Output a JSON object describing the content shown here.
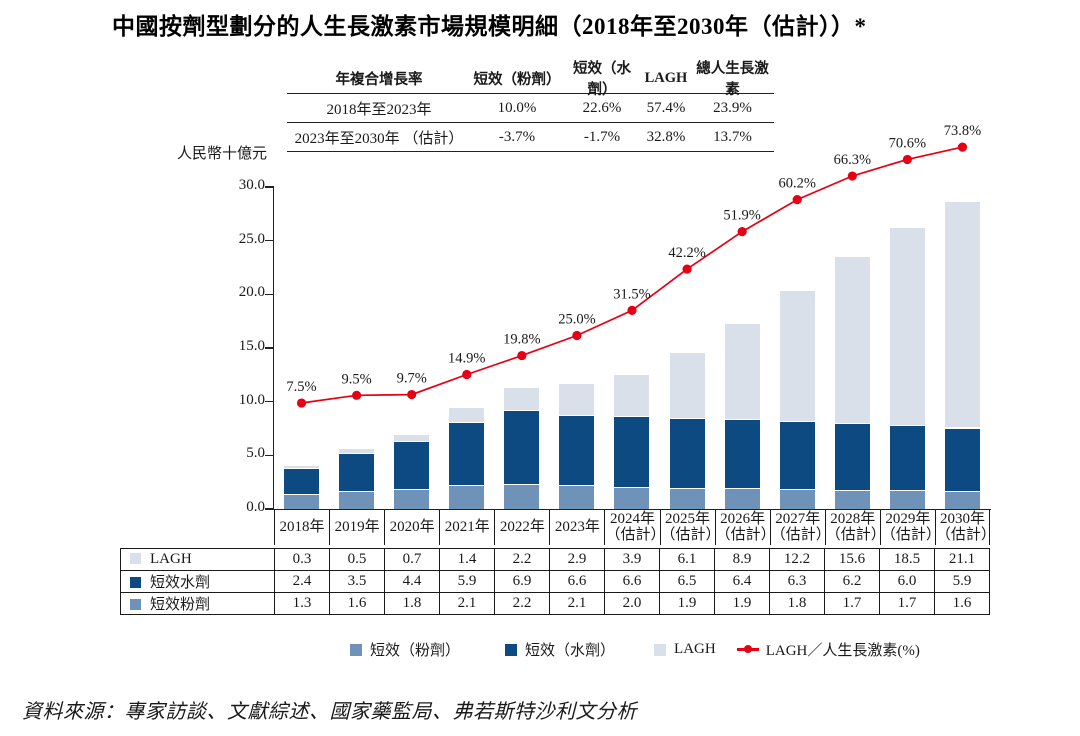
{
  "title": "中國按劑型劃分的人生長激素市場規模明細（2018年至2030年（估計））*",
  "cagr_table": {
    "header": [
      "年複合增長率",
      "短效（粉劑）",
      "短效（水劑）",
      "LAGH",
      "總人生長激素"
    ],
    "rows": [
      {
        "label": "2018年至2023年",
        "values": [
          "10.0%",
          "22.6%",
          "57.4%",
          "23.9%"
        ]
      },
      {
        "label": "2023年至2030年 （估計）",
        "values": [
          "-3.7%",
          "-1.7%",
          "32.8%",
          "13.7%"
        ]
      }
    ]
  },
  "chart_data": {
    "type": "stacked-bar+line",
    "title": "中國按劑型劃分的人生長激素市場規模明細（2018年至2030年（估計））*",
    "ylabel": "人民幣十億元",
    "ylim": [
      0,
      30
    ],
    "yticks": [
      "0.0",
      "5.0",
      "10.0",
      "15.0",
      "20.0",
      "25.0",
      "30.0"
    ],
    "grid": false,
    "legend_position": "bottom",
    "categories": [
      "2018年",
      "2019年",
      "2020年",
      "2021年",
      "2022年",
      "2023年",
      "2024年\n（估計）",
      "2025年\n（估計）",
      "2026年\n（估計）",
      "2027年\n（估計）",
      "2028年\n（估計）",
      "2029年\n（估計）",
      "2030年\n（估計）"
    ],
    "bar_series": [
      {
        "name": "短效粉劑",
        "legend_label": "短效（粉劑）",
        "color": "#6E92B8",
        "values": [
          1.3,
          1.6,
          1.8,
          2.1,
          2.2,
          2.1,
          2.0,
          1.9,
          1.9,
          1.8,
          1.7,
          1.7,
          1.6
        ]
      },
      {
        "name": "短效水劑",
        "legend_label": "短效（水劑）",
        "color": "#0D4A82",
        "values": [
          2.4,
          3.5,
          4.4,
          5.9,
          6.9,
          6.6,
          6.6,
          6.5,
          6.4,
          6.3,
          6.2,
          6.0,
          5.9
        ]
      },
      {
        "name": "LAGH",
        "legend_label": "LAGH",
        "color": "#D9E0EA",
        "values": [
          0.3,
          0.5,
          0.7,
          1.4,
          2.2,
          2.9,
          3.9,
          6.1,
          8.9,
          12.2,
          15.6,
          18.5,
          21.1
        ]
      }
    ],
    "line_series": {
      "name": "LAGH／人生長激素(%)",
      "color": "#E60014",
      "values": [
        7.5,
        9.5,
        9.7,
        14.9,
        19.8,
        25.0,
        31.5,
        42.2,
        51.9,
        60.2,
        66.3,
        70.6,
        73.8
      ],
      "labels": [
        "7.5%",
        "9.5%",
        "9.7%",
        "14.9%",
        "19.8%",
        "25.0%",
        "31.5%",
        "42.2%",
        "51.9%",
        "60.2%",
        "66.3%",
        "70.6%",
        "73.8%"
      ]
    }
  },
  "bottom_table": {
    "rows": [
      {
        "label": "LAGH",
        "swatch_color": "#D9E0EA",
        "values": [
          "0.3",
          "0.5",
          "0.7",
          "1.4",
          "2.2",
          "2.9",
          "3.9",
          "6.1",
          "8.9",
          "12.2",
          "15.6",
          "18.5",
          "21.1"
        ]
      },
      {
        "label": "短效水劑",
        "swatch_color": "#0D4A82",
        "values": [
          "2.4",
          "3.5",
          "4.4",
          "5.9",
          "6.9",
          "6.6",
          "6.6",
          "6.5",
          "6.4",
          "6.3",
          "6.2",
          "6.0",
          "5.9"
        ]
      },
      {
        "label": "短效粉劑",
        "swatch_color": "#6E92B8",
        "values": [
          "1.3",
          "1.6",
          "1.8",
          "2.1",
          "2.2",
          "2.1",
          "2.0",
          "1.9",
          "1.9",
          "1.8",
          "1.7",
          "1.7",
          "1.6"
        ]
      }
    ]
  },
  "legend": {
    "items": [
      {
        "label": "短效（粉劑）",
        "type": "square",
        "color": "#6E92B8"
      },
      {
        "label": "短效（水劑）",
        "type": "square",
        "color": "#0D4A82"
      },
      {
        "label": "LAGH",
        "type": "square",
        "color": "#D9E0EA"
      },
      {
        "label": "LAGH／人生長激素(%)",
        "type": "line",
        "color": "#E60014"
      }
    ]
  },
  "source": "資料來源：專家訪談、文獻綜述、國家藥監局、弗若斯特沙利文分析"
}
